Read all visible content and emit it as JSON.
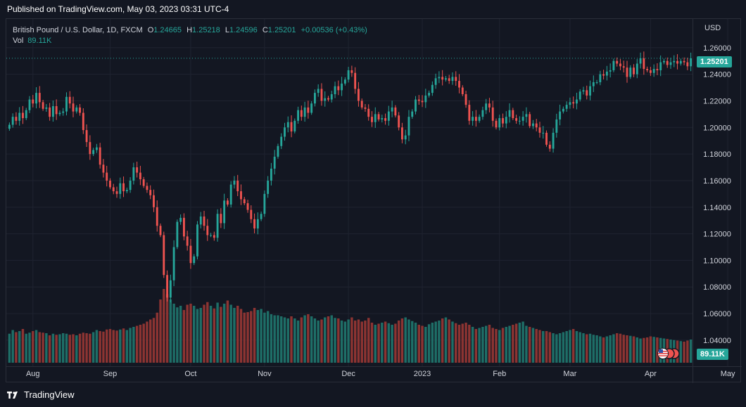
{
  "header": {
    "published": "Published on TradingView.com, May 03, 2023 03:31 UTC-4"
  },
  "legend": {
    "symbol": "British Pound / U.S. Dollar, 1D, FXCM",
    "open_label": "O",
    "open": "1.24665",
    "high_label": "H",
    "high": "1.25218",
    "low_label": "L",
    "low": "1.24596",
    "close_label": "C",
    "close": "1.25201",
    "change": "+0.00536 (+0.43%)",
    "vol_label": "Vol",
    "vol": "89.11K"
  },
  "currency": "USD",
  "last_price_tag": "1.25201",
  "volume_tag": "89.11K",
  "footer": {
    "brand": "TradingView"
  },
  "colors": {
    "up": "#26a69a",
    "down": "#ef5350",
    "up_vol": "#1e6e67",
    "down_vol": "#8c3432",
    "background": "#131722",
    "grid": "#1f2330",
    "text": "#d1d4dc"
  },
  "chart_data": {
    "type": "candlestick",
    "title": "British Pound / U.S. Dollar, 1D, FXCM",
    "y_ticks": [
      "1.26000",
      "1.24000",
      "1.22000",
      "1.20000",
      "1.18000",
      "1.16000",
      "1.14000",
      "1.12000",
      "1.10000",
      "1.08000",
      "1.06000",
      "1.04000"
    ],
    "y_range": [
      1.0225,
      1.271
    ],
    "x_month_labels": [
      "Aug",
      "Sep",
      "Oct",
      "Nov",
      "Dec",
      "2023",
      "Feb",
      "Mar",
      "Apr",
      "May"
    ],
    "x_label_bar_index": [
      7,
      30,
      54,
      76,
      101,
      123,
      146,
      167,
      191,
      214
    ],
    "grid": true,
    "series": [
      {
        "name": "Close",
        "values": [
          1.202,
          1.208,
          1.205,
          1.211,
          1.207,
          1.213,
          1.221,
          1.218,
          1.226,
          1.219,
          1.214,
          1.215,
          1.208,
          1.216,
          1.21,
          1.211,
          1.212,
          1.223,
          1.218,
          1.212,
          1.215,
          1.211,
          1.198,
          1.189,
          1.18,
          1.183,
          1.185,
          1.172,
          1.166,
          1.16,
          1.155,
          1.152,
          1.15,
          1.158,
          1.152,
          1.153,
          1.16,
          1.17,
          1.166,
          1.161,
          1.156,
          1.153,
          1.149,
          1.14,
          1.126,
          1.119,
          1.089,
          1.072,
          1.085,
          1.11,
          1.129,
          1.132,
          1.118,
          1.111,
          1.098,
          1.103,
          1.127,
          1.133,
          1.126,
          1.119,
          1.119,
          1.117,
          1.135,
          1.128,
          1.145,
          1.142,
          1.157,
          1.16,
          1.152,
          1.146,
          1.143,
          1.138,
          1.131,
          1.124,
          1.131,
          1.135,
          1.15,
          1.16,
          1.169,
          1.178,
          1.186,
          1.193,
          1.2,
          1.204,
          1.197,
          1.205,
          1.213,
          1.208,
          1.215,
          1.211,
          1.218,
          1.226,
          1.229,
          1.22,
          1.222,
          1.221,
          1.225,
          1.231,
          1.228,
          1.233,
          1.236,
          1.243,
          1.241,
          1.229,
          1.22,
          1.215,
          1.214,
          1.208,
          1.204,
          1.21,
          1.206,
          1.207,
          1.205,
          1.212,
          1.215,
          1.209,
          1.2,
          1.191,
          1.194,
          1.208,
          1.212,
          1.221,
          1.22,
          1.219,
          1.224,
          1.226,
          1.232,
          1.237,
          1.238,
          1.236,
          1.237,
          1.235,
          1.238,
          1.235,
          1.23,
          1.225,
          1.217,
          1.205,
          1.208,
          1.205,
          1.208,
          1.213,
          1.218,
          1.215,
          1.205,
          1.2,
          1.207,
          1.203,
          1.208,
          1.213,
          1.207,
          1.205,
          1.205,
          1.208,
          1.21,
          1.201,
          1.203,
          1.2,
          1.196,
          1.196,
          1.187,
          1.184,
          1.196,
          1.206,
          1.212,
          1.214,
          1.217,
          1.219,
          1.218,
          1.221,
          1.227,
          1.228,
          1.224,
          1.231,
          1.234,
          1.234,
          1.24,
          1.239,
          1.242,
          1.243,
          1.25,
          1.248,
          1.246,
          1.245,
          1.238,
          1.245,
          1.24,
          1.248,
          1.252,
          1.244,
          1.243,
          1.241,
          1.244,
          1.243,
          1.249,
          1.25,
          1.247,
          1.249,
          1.25,
          1.248,
          1.25,
          1.249,
          1.246,
          1.252
        ]
      },
      {
        "name": "Vol",
        "values": [
          55,
          62,
          58,
          60,
          64,
          55,
          57,
          60,
          62,
          58,
          57,
          56,
          52,
          55,
          53,
          54,
          56,
          55,
          53,
          54,
          52,
          55,
          57,
          56,
          55,
          58,
          62,
          60,
          59,
          63,
          64,
          62,
          61,
          63,
          65,
          62,
          66,
          68,
          70,
          72,
          74,
          78,
          82,
          85,
          95,
          120,
          140,
          130,
          120,
          112,
          105,
          108,
          100,
          110,
          112,
          108,
          102,
          104,
          110,
          115,
          108,
          103,
          114,
          106,
          112,
          118,
          110,
          104,
          108,
          102,
          95,
          96,
          98,
          104,
          100,
          102,
          95,
          98,
          92,
          90,
          90,
          88,
          86,
          84,
          88,
          84,
          80,
          86,
          90,
          92,
          88,
          84,
          80,
          82,
          86,
          88,
          90,
          85,
          84,
          80,
          78,
          82,
          86,
          80,
          82,
          78,
          80,
          85,
          76,
          72,
          74,
          76,
          78,
          75,
          72,
          74,
          80,
          84,
          86,
          82,
          79,
          76,
          72,
          70,
          68,
          73,
          76,
          78,
          80,
          84,
          86,
          82,
          78,
          75,
          72,
          74,
          76,
          72,
          68,
          64,
          66,
          68,
          70,
          72,
          66,
          64,
          62,
          66,
          68,
          70,
          72,
          74,
          76,
          78,
          70,
          68,
          66,
          64,
          62,
          60,
          60,
          58,
          56,
          54,
          56,
          58,
          60,
          62,
          64,
          60,
          58,
          56,
          54,
          55,
          53,
          52,
          50,
          48,
          50,
          52,
          54,
          56,
          55,
          53,
          52,
          51,
          50,
          48,
          46,
          47,
          48,
          50,
          49,
          48,
          47,
          46,
          45,
          44,
          43,
          42,
          41,
          40,
          42,
          44,
          46,
          48,
          50,
          52,
          49,
          47,
          45,
          43,
          42,
          41,
          40,
          39,
          38
        ]
      }
    ],
    "last_price": 1.25201,
    "volume_last": "89.11K"
  }
}
